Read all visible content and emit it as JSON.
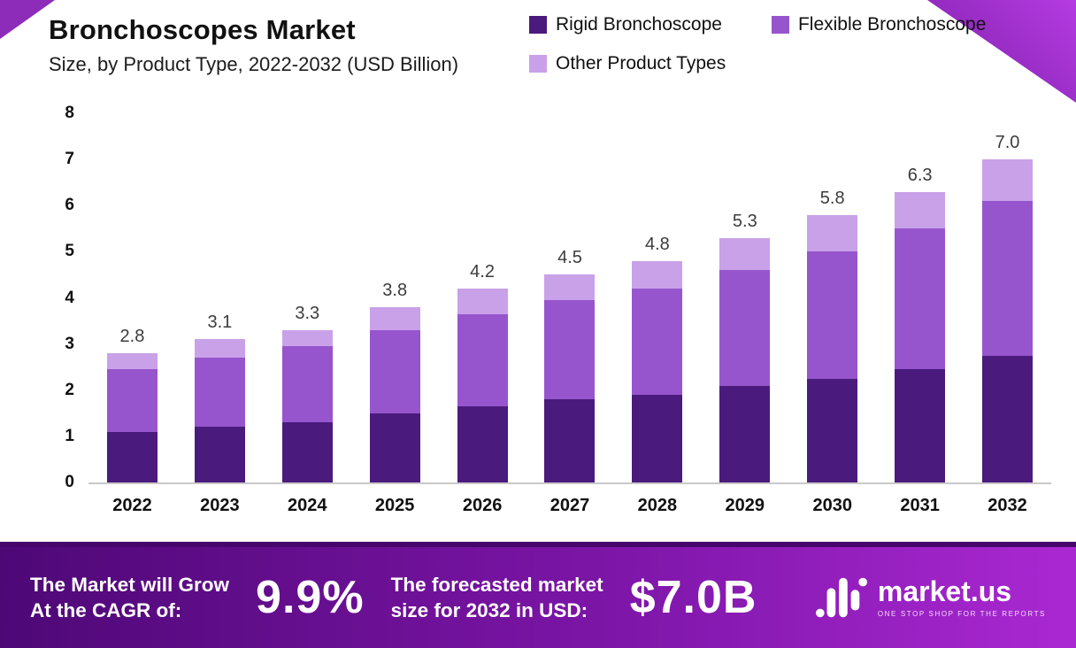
{
  "page": {
    "title": "Bronchoscopes Market",
    "subtitle": "Size, by Product Type, 2022-2032 (USD Billion)"
  },
  "chart_data": {
    "type": "bar",
    "stacked": true,
    "title": "Bronchoscopes Market",
    "subtitle": "Size, by Product Type, 2022-2032 (USD Billion)",
    "categories": [
      "2022",
      "2023",
      "2024",
      "2025",
      "2026",
      "2027",
      "2028",
      "2029",
      "2030",
      "2031",
      "2032"
    ],
    "series": [
      {
        "name": "Rigid Bronchoscope",
        "color": "#4b1a7d",
        "values": [
          1.1,
          1.2,
          1.3,
          1.5,
          1.65,
          1.8,
          1.9,
          2.1,
          2.25,
          2.45,
          2.75
        ]
      },
      {
        "name": "Flexible Bronchoscope",
        "color": "#9655cd",
        "values": [
          1.35,
          1.5,
          1.65,
          1.8,
          2.0,
          2.15,
          2.3,
          2.5,
          2.75,
          3.05,
          3.35
        ]
      },
      {
        "name": "Other Product Types",
        "color": "#c9a1e8",
        "values": [
          0.35,
          0.4,
          0.35,
          0.5,
          0.55,
          0.55,
          0.6,
          0.7,
          0.8,
          0.8,
          0.9
        ]
      }
    ],
    "totals": [
      "2.8",
      "3.1",
      "3.3",
      "3.8",
      "4.2",
      "4.5",
      "4.8",
      "5.3",
      "5.8",
      "6.3",
      "7.0"
    ],
    "ylim": [
      0,
      8
    ],
    "yticks": [
      0,
      1,
      2,
      3,
      4,
      5,
      6,
      7,
      8
    ],
    "xlabel": "",
    "ylabel": "",
    "grid": false,
    "legend_position": "top-right"
  },
  "footer": {
    "cagr_label_line1": "The Market will Grow",
    "cagr_label_line2": "At the CAGR of:",
    "cagr_value": "9.9%",
    "forecast_label_line1": "The forecasted market",
    "forecast_label_line2": "size for 2032 in USD:",
    "forecast_value": "$7.0B",
    "logo_text": "market.us",
    "logo_tagline": "ONE STOP SHOP FOR THE REPORTS"
  },
  "colors": {
    "rigid": "#4b1a7d",
    "flexible": "#9655cd",
    "other": "#c9a1e8",
    "footer_gradient_start": "#4e0876",
    "footer_gradient_end": "#aa28d2",
    "corner_accent": "#8e2cba"
  }
}
